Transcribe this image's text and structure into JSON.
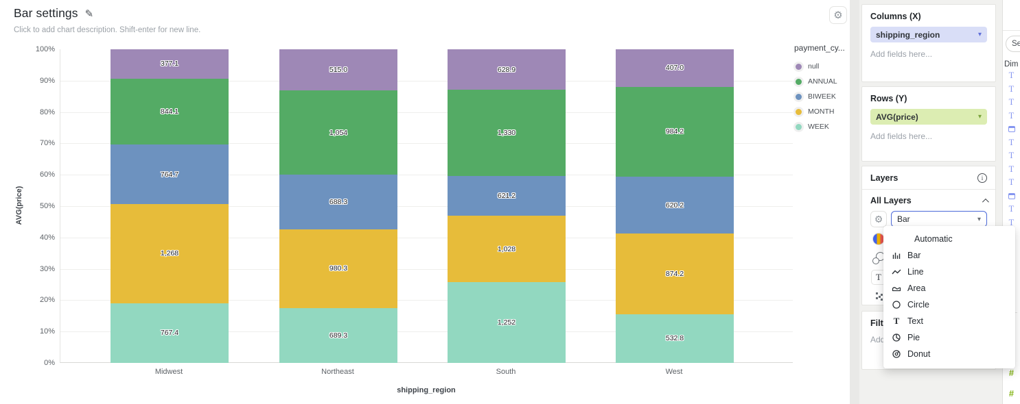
{
  "chart_card": {
    "title": "Bar settings",
    "description": "Click to add chart description. Shift-enter for new line."
  },
  "chart_data": {
    "type": "bar",
    "subtype": "stacked-100-percent",
    "title": "Bar settings",
    "categories": [
      "Midwest",
      "Northeast",
      "South",
      "West"
    ],
    "series": [
      {
        "name": "null",
        "color": "#9e88b6",
        "values": [
          377.1,
          515.0,
          628.9,
          407.0
        ],
        "labels": [
          "377.1",
          "515.0",
          "628.9",
          "407.0"
        ]
      },
      {
        "name": "ANNUAL",
        "color": "#54ab65",
        "values": [
          844.1,
          1054,
          1330,
          984.2
        ],
        "labels": [
          "844.1",
          "1,054",
          "1,330",
          "984.2"
        ]
      },
      {
        "name": "BIWEEK",
        "color": "#6d92bf",
        "values": [
          764.7,
          688.3,
          621.2,
          620.2
        ],
        "labels": [
          "764.7",
          "688.3",
          "621.2",
          "620.2"
        ]
      },
      {
        "name": "MONTH",
        "color": "#e7bc3a",
        "values": [
          1268,
          980.3,
          1028,
          874.2
        ],
        "labels": [
          "1,268",
          "980.3",
          "1,028",
          "874.2"
        ]
      },
      {
        "name": "WEEK",
        "color": "#92d8c0",
        "values": [
          767.4,
          689.3,
          1252,
          532.8
        ],
        "labels": [
          "767.4",
          "689.3",
          "1,252",
          "532.8"
        ]
      }
    ],
    "legend_title": "payment_cy...",
    "legend_position": "right",
    "xlabel": "shipping_region",
    "ylabel": "AVG(price)",
    "y_ticks": [
      "0%",
      "10%",
      "20%",
      "30%",
      "40%",
      "50%",
      "60%",
      "70%",
      "80%",
      "90%",
      "100%"
    ],
    "ylim": [
      0,
      1
    ],
    "grid": true
  },
  "settings_panel": {
    "columns": {
      "title": "Columns (X)",
      "pill": "shipping_region",
      "placeholder": "Add fields here..."
    },
    "rows": {
      "title": "Rows (Y)",
      "pill": "AVG(price)",
      "placeholder": "Add fields here..."
    },
    "layers": {
      "title": "Layers",
      "all_layers_label": "All Layers",
      "layer_type_value": "Bar"
    },
    "filters": {
      "title": "Filters",
      "placeholder": "Add fields here..."
    }
  },
  "layer_type_menu": {
    "items": [
      {
        "label": "Automatic",
        "icon": "none"
      },
      {
        "label": "Bar",
        "icon": "bar"
      },
      {
        "label": "Line",
        "icon": "line"
      },
      {
        "label": "Area",
        "icon": "area"
      },
      {
        "label": "Circle",
        "icon": "circle"
      },
      {
        "label": "Text",
        "icon": "text"
      },
      {
        "label": "Pie",
        "icon": "pie"
      },
      {
        "label": "Donut",
        "icon": "donut"
      }
    ]
  },
  "fields_panel": {
    "search_text": "Se",
    "section_label": "Dim",
    "icons": [
      "text",
      "text",
      "text",
      "text",
      "calendar",
      "text",
      "text",
      "text",
      "text",
      "calendar",
      "text",
      "text",
      "calendar",
      "text",
      "text",
      "text",
      "text",
      "text",
      "divider",
      "a",
      "calendar-green",
      "number",
      "number",
      "number"
    ]
  }
}
